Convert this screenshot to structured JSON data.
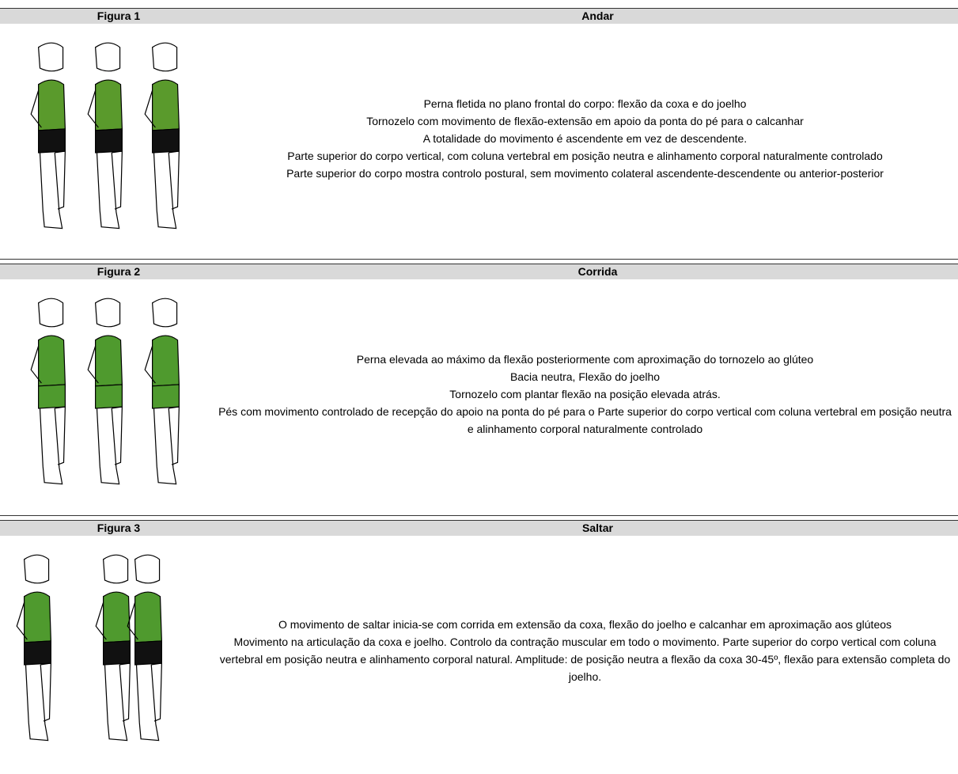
{
  "sections": [
    {
      "figure": "Figura 1",
      "title": "Andar",
      "paragraphs": [
        "Perna fletida no plano frontal do corpo: flexão da coxa e do joelho",
        "Tornozelo com movimento de flexão-extensão em apoio da ponta do pé para o calcanhar",
        "A totalidade do movimento é ascendente em vez de descendente.",
        "Parte superior do corpo vertical, com coluna vertebral em posição neutra e alinhamento corporal naturalmente controlado",
        "Parte superior do corpo mostra controlo postural, sem movimento colateral ascendente-descendente ou anterior-posterior"
      ]
    },
    {
      "figure": "Figura 2",
      "title": "Corrida",
      "paragraphs": [
        "Perna elevada ao máximo da flexão posteriormente com aproximação do tornozelo ao glúteo",
        "Bacia neutra, Flexão do joelho",
        "Tornozelo com plantar flexão na posição elevada atrás.",
        "Pés com movimento controlado de recepção do apoio na ponta do pé para o Parte superior do corpo vertical com coluna vertebral em posição neutra e alinhamento corporal naturalmente controlado"
      ]
    },
    {
      "figure": "Figura 3",
      "title": "Saltar",
      "paragraphs": [
        "O movimento de saltar inicia-se com corrida em extensão da coxa, flexão do joelho e calcanhar em aproximação aos glúteos",
        "Movimento na articulação da coxa e joelho. Controlo da contração muscular em todo o movimento. Parte superior do corpo vertical com coluna vertebral em posição neutra e alinhamento corporal natural. Amplitude: de posição neutra a flexão da coxa 30-45º, flexão para extensão completa do joelho."
      ]
    }
  ]
}
